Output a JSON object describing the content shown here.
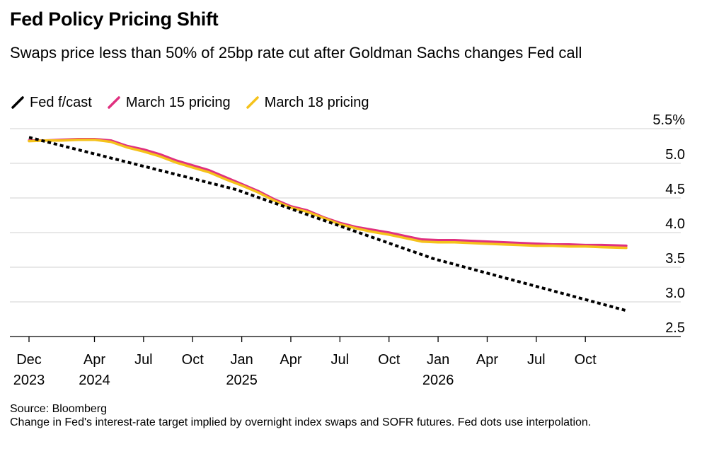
{
  "chart_data": {
    "type": "line",
    "title": "Fed Policy Pricing Shift",
    "subtitle": "Swaps price less than 50% of 25bp rate cut after Goldman Sachs changes Fed call",
    "ylim": [
      2.5,
      5.5
    ],
    "yticks": [
      {
        "value": 5.5,
        "label": "5.5%"
      },
      {
        "value": 5.0,
        "label": "5.0"
      },
      {
        "value": 4.5,
        "label": "4.5"
      },
      {
        "value": 4.0,
        "label": "4.0"
      },
      {
        "value": 3.5,
        "label": "3.5"
      },
      {
        "value": 3.0,
        "label": "3.0"
      },
      {
        "value": 2.5,
        "label": "2.5"
      }
    ],
    "xlim": [
      0,
      36.5
    ],
    "xticks": [
      {
        "value": 0,
        "line1": "Dec",
        "line2": "2023"
      },
      {
        "value": 4,
        "line1": "Apr",
        "line2": "2024"
      },
      {
        "value": 7,
        "line1": "Jul",
        "line2": ""
      },
      {
        "value": 10,
        "line1": "Oct",
        "line2": ""
      },
      {
        "value": 13,
        "line1": "Jan",
        "line2": "2025"
      },
      {
        "value": 16,
        "line1": "Apr",
        "line2": ""
      },
      {
        "value": 19,
        "line1": "Jul",
        "line2": ""
      },
      {
        "value": 22,
        "line1": "Oct",
        "line2": ""
      },
      {
        "value": 25,
        "line1": "Jan",
        "line2": "2026"
      },
      {
        "value": 28,
        "line1": "Apr",
        "line2": ""
      },
      {
        "value": 31,
        "line1": "Jul",
        "line2": ""
      },
      {
        "value": 34,
        "line1": "Oct",
        "line2": ""
      }
    ],
    "series": [
      {
        "name": "Fed f/cast",
        "color": "#000000",
        "style": "dotted",
        "x": [
          0,
          12.6,
          24.7,
          36.5
        ],
        "values": [
          5.375,
          4.625,
          3.625,
          2.875
        ]
      },
      {
        "name": "March 15 pricing",
        "color": "#e0307f",
        "style": "solid",
        "x": [
          0,
          1,
          2,
          3,
          4,
          5,
          6,
          7,
          8,
          9,
          10,
          11,
          12,
          13,
          14,
          15,
          16,
          17,
          18,
          19,
          20,
          21,
          22,
          23,
          24,
          25,
          26,
          27,
          28,
          29,
          30,
          31,
          32,
          33,
          34,
          35,
          36.5
        ],
        "values": [
          5.33,
          5.33,
          5.34,
          5.35,
          5.35,
          5.33,
          5.25,
          5.2,
          5.13,
          5.04,
          4.97,
          4.9,
          4.8,
          4.7,
          4.6,
          4.48,
          4.38,
          4.32,
          4.22,
          4.14,
          4.08,
          4.04,
          4.0,
          3.95,
          3.9,
          3.89,
          3.89,
          3.88,
          3.87,
          3.86,
          3.85,
          3.84,
          3.83,
          3.83,
          3.82,
          3.82,
          3.81
        ]
      },
      {
        "name": "March 18 pricing",
        "color": "#f5c21b",
        "style": "solid",
        "x": [
          0,
          1,
          2,
          3,
          4,
          5,
          6,
          7,
          8,
          9,
          10,
          11,
          12,
          13,
          14,
          15,
          16,
          17,
          18,
          19,
          20,
          21,
          22,
          23,
          24,
          25,
          26,
          27,
          28,
          29,
          30,
          31,
          32,
          33,
          34,
          35,
          36.5
        ],
        "values": [
          5.32,
          5.33,
          5.33,
          5.34,
          5.34,
          5.31,
          5.23,
          5.17,
          5.1,
          5.01,
          4.94,
          4.87,
          4.77,
          4.68,
          4.58,
          4.46,
          4.36,
          4.3,
          4.21,
          4.12,
          4.06,
          4.01,
          3.97,
          3.92,
          3.87,
          3.86,
          3.86,
          3.85,
          3.84,
          3.83,
          3.82,
          3.81,
          3.81,
          3.8,
          3.8,
          3.79,
          3.78
        ]
      }
    ]
  },
  "legend": [
    {
      "label": "Fed f/cast",
      "color": "#000000"
    },
    {
      "label": "March 15 pricing",
      "color": "#e0307f"
    },
    {
      "label": "March 18 pricing",
      "color": "#f5c21b"
    }
  ],
  "footer": {
    "source": "Source: Bloomberg",
    "note": "Change in Fed's interest-rate target implied by overnight index swaps and SOFR futures. Fed dots use interpolation."
  }
}
